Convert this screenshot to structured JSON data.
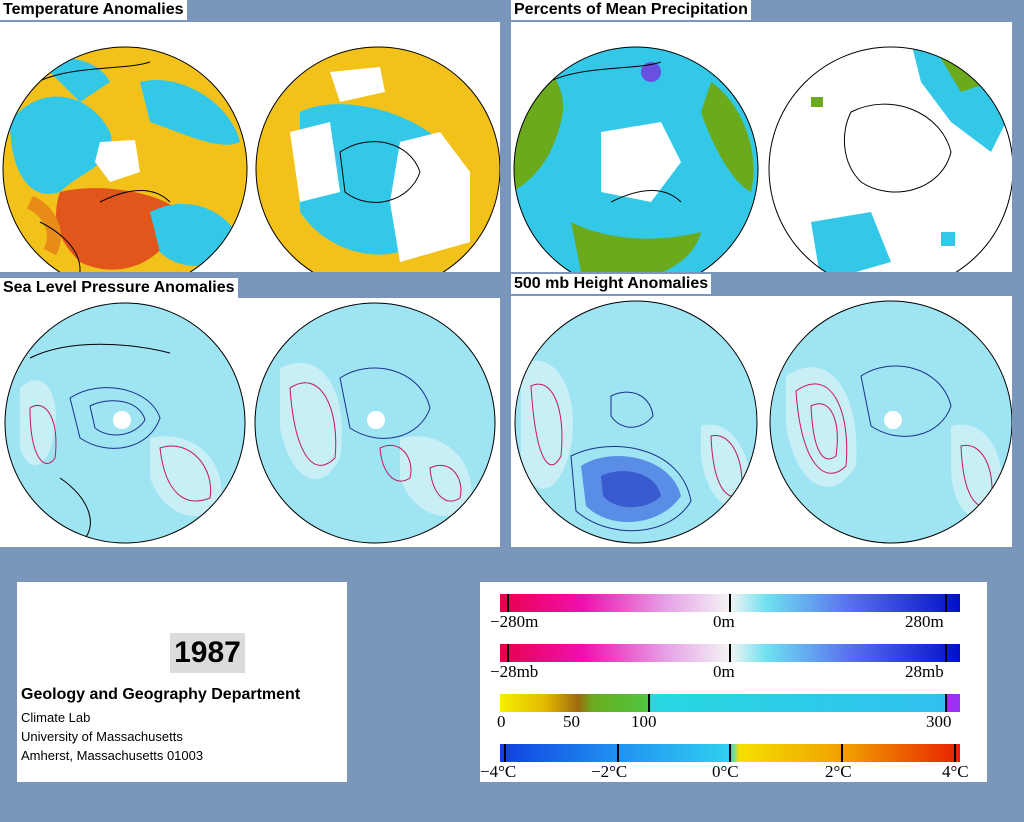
{
  "panels": {
    "temperature": {
      "title": "Temperature Anomalies"
    },
    "precipitation": {
      "title": "Percents of Mean Precipitation"
    },
    "slp": {
      "title": "Sea Level Pressure Anomalies"
    },
    "height": {
      "title": "500 mb Height Anomalies"
    }
  },
  "info": {
    "year": "1987",
    "department": "Geology and Geography Department",
    "lines": [
      "Climate Lab",
      "University of Massachusetts",
      "Amherst, Massachusetts 01003"
    ]
  },
  "legend": {
    "height_scale": {
      "min": "−280m",
      "mid": "0m",
      "max": "280m"
    },
    "pressure_scale": {
      "min": "−28mb",
      "mid": "0m",
      "max": "28mb"
    },
    "precip_scale": {
      "v0": "0",
      "v50": "50",
      "v100": "100",
      "v300": "300"
    },
    "temp_scale": {
      "vm4": "−4°C",
      "vm2": "−2°C",
      "v0": "0°C",
      "v2": "2°C",
      "v4": "4°C"
    }
  },
  "colors": {
    "background": "#7b96bb",
    "warm": "#f2c21a",
    "cool": "#33c8e8",
    "hot": "#e0561c",
    "wet_green": "#6aaa1c",
    "anomaly_light": "#c8eef6",
    "contour_neg": "#1a2f8c",
    "contour_pos": "#c2185b"
  }
}
